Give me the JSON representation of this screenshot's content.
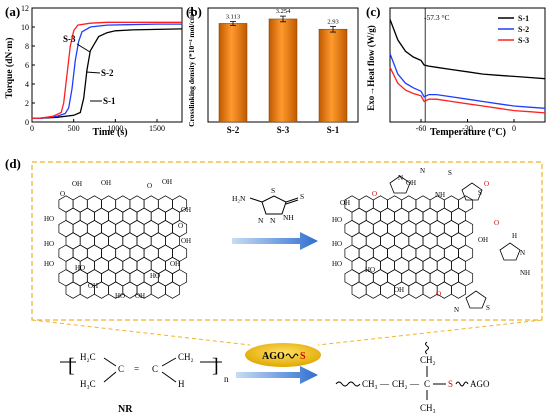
{
  "panel_labels": {
    "a": "(a)",
    "b": "(b)",
    "c": "(c)",
    "d": "(d)"
  },
  "chart_data": [
    {
      "type": "line",
      "panel": "(a)",
      "xlabel": "Time (s)",
      "ylabel": "Torque (dN·m)",
      "xlim": [
        0,
        1800
      ],
      "ylim": [
        0,
        12
      ],
      "xticks": [
        "0",
        "500",
        "1000",
        "1500"
      ],
      "yticks": [
        "0",
        "2",
        "4",
        "6",
        "8",
        "10",
        "12"
      ],
      "series": [
        {
          "name": "S-1",
          "color": "#000000",
          "x": [
            0,
            100,
            300,
            500,
            580,
            620,
            660,
            700,
            800,
            900,
            1000,
            1200,
            1500,
            1800
          ],
          "y": [
            0.4,
            0.4,
            0.5,
            0.7,
            1.0,
            2.5,
            5.5,
            7.5,
            9.0,
            9.4,
            9.6,
            9.7,
            9.75,
            9.8
          ]
        },
        {
          "name": "S-2",
          "color": "#1f3dff",
          "x": [
            0,
            100,
            300,
            400,
            440,
            480,
            520,
            560,
            600,
            700,
            900,
            1200,
            1500,
            1800
          ],
          "y": [
            0.4,
            0.4,
            0.6,
            0.9,
            1.5,
            3.5,
            6.5,
            8.5,
            9.5,
            10.0,
            10.2,
            10.25,
            10.3,
            10.3
          ]
        },
        {
          "name": "S-3",
          "color": "#ff2020",
          "x": [
            0,
            100,
            250,
            350,
            380,
            420,
            460,
            500,
            550,
            700,
            900,
            1200,
            1500,
            1800
          ],
          "y": [
            0.4,
            0.4,
            0.6,
            1.0,
            2.0,
            5.0,
            8.0,
            9.6,
            10.2,
            10.4,
            10.5,
            10.5,
            10.5,
            10.5
          ]
        }
      ],
      "annotations": [
        "S-3",
        "S-2",
        "S-1"
      ]
    },
    {
      "type": "bar",
      "panel": "(b)",
      "ylabel": "Crosslinking density (*10⁻⁴ mol/cm³)",
      "categories": [
        "S-2",
        "S-3",
        "S-1"
      ],
      "values": [
        3.113,
        3.254,
        2.93
      ],
      "value_labels": [
        "3.113",
        "3.254",
        "2.93"
      ],
      "errors": [
        0.06,
        0.09,
        0.09
      ],
      "ylim": [
        0,
        3.6
      ],
      "bar_color": "#f08a1c"
    },
    {
      "type": "line",
      "panel": "(c)",
      "xlabel": "Temperature (°C)",
      "ylabel": "Exo→Heat flow (W/g)",
      "xlim": [
        -80,
        20
      ],
      "xticks": [
        "-60",
        "-30",
        "0"
      ],
      "annotation": "-57.3 °C",
      "vline_x": -57.3,
      "series": [
        {
          "name": "S-1",
          "color": "#000000",
          "x": [
            -80,
            -75,
            -70,
            -65,
            -60,
            -58,
            -55,
            -50,
            -40,
            -30,
            -20,
            -10,
            0,
            10,
            20
          ],
          "y": [
            0.9,
            0.72,
            0.62,
            0.57,
            0.54,
            0.5,
            0.49,
            0.48,
            0.46,
            0.44,
            0.42,
            0.41,
            0.4,
            0.39,
            0.38
          ]
        },
        {
          "name": "S-2",
          "color": "#1f3dff",
          "x": [
            -80,
            -75,
            -70,
            -65,
            -60,
            -58,
            -55,
            -50,
            -40,
            -30,
            -20,
            -10,
            0,
            10,
            20
          ],
          "y": [
            0.6,
            0.42,
            0.34,
            0.3,
            0.27,
            0.22,
            0.24,
            0.24,
            0.22,
            0.2,
            0.18,
            0.16,
            0.14,
            0.13,
            0.12
          ]
        },
        {
          "name": "S-3",
          "color": "#ff2020",
          "x": [
            -80,
            -75,
            -70,
            -65,
            -60,
            -58,
            -55,
            -50,
            -40,
            -30,
            -20,
            -10,
            0,
            10,
            20
          ],
          "y": [
            0.48,
            0.34,
            0.28,
            0.25,
            0.23,
            0.18,
            0.2,
            0.2,
            0.18,
            0.16,
            0.14,
            0.12,
            0.1,
            0.09,
            0.08
          ]
        }
      ]
    }
  ],
  "scheme": {
    "go_groups": [
      "O",
      "OH",
      "HO",
      "OH",
      "O",
      "OH",
      "HO",
      "OH",
      "HO",
      "O",
      "OH",
      "HO",
      "OH",
      "HO",
      "OH",
      "HO",
      "OH"
    ],
    "reagent_amine": "H₂N",
    "reagent_n1": "N",
    "reagent_n2": "N",
    "reagent_nh": "NH",
    "reagent_s_ring": "S",
    "reagent_s_thione": "S",
    "product_groups": [
      "O",
      "HO",
      "OH",
      "OH",
      "HO",
      "HO",
      "OH",
      "HO",
      "OH",
      "O",
      "O",
      "N",
      "N",
      "NH",
      "S",
      "S",
      "H",
      "N",
      "NH",
      "S",
      "N",
      "O"
    ],
    "ago_label": "AGO",
    "ago_s": "S",
    "nr_label": "NR",
    "nr_n": "n",
    "nr_parts": {
      "h2c": "H₂C",
      "c1": "C",
      "eq": "=",
      "c2": "C",
      "ch2": "CH₂",
      "h3c": "H₃C",
      "h": "H"
    },
    "product_chain": {
      "left": "CH₃",
      "dash1": "—",
      "mid": "CH₂",
      "dash2": "—",
      "c": "C",
      "s": "S",
      "ago": "AGO",
      "top": "CH₂",
      "bottom": "CH₃"
    }
  }
}
